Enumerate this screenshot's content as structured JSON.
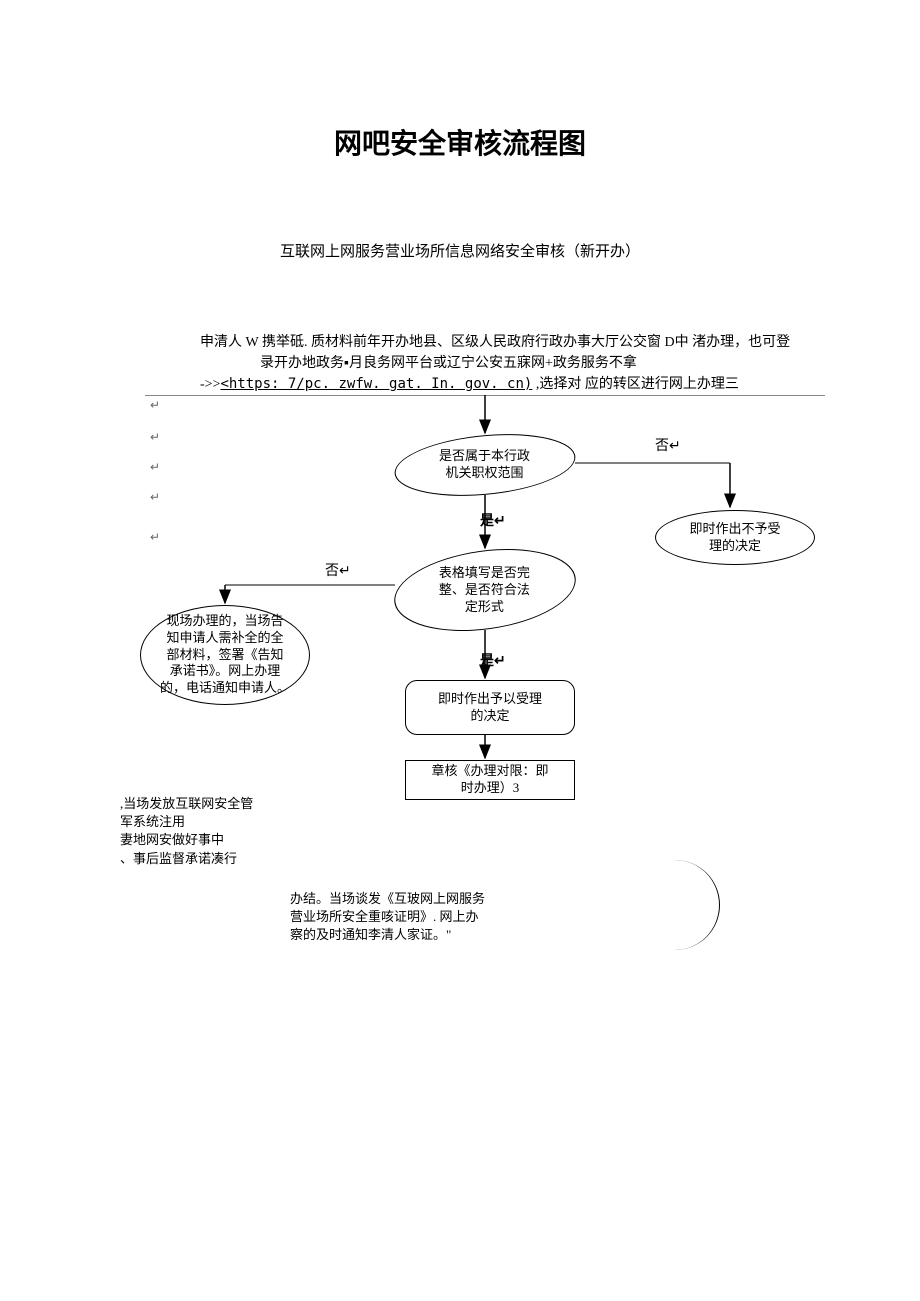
{
  "title": "网吧安全审核流程图",
  "subtitle": "互联网上网服务营业场所信息网络安全审核（新开办）",
  "intro": {
    "line1": "申清人 W 携举砥. 质材料前年开办地县、区级人民政府行政办事大厅公交窗 D中 渚办理，也可登",
    "line2": "录开办地政务▪月良务网平台或辽宁公安五寐网+政务服务不拿",
    "line3_prefix": "->>",
    "line3_url": "<https: 7∕pc. zwfw. gat. In. gov. cn)",
    "line3_suffix": " ,选择对 应的转区进行网上办理三"
  },
  "flowchart": {
    "type": "flowchart",
    "decision1": "是否属于本行政\n机关职权范围",
    "decision2": "表格填写是否完\n整、是否符合法\n定形式",
    "reject_box": "即时作出不予受\n理的决定",
    "advise_box": "现场办理的，当场告\n知申请人需补全的全\n部材料，签署《告知\n承诺书》。网上办理\n的，电话通知申请人。",
    "accept_box": "即时作出予以受理\n的决定",
    "review_box": "章核《办理对限：即\n时办理）3",
    "left_text": ",当场发放互联网安全管\n军系统注用\n妻地网安做好事中\n、事后监督承诺凑行",
    "bottom_text": "办结。当场谈发《互玻网上网服务\n营业场所安全重咳证明》. 网上办\n察的及时通知李清人家证。\"",
    "label_yes": "是",
    "label_no": "否",
    "colors": {
      "line": "#000000",
      "text": "#000000",
      "bg": "#ffffff",
      "return_mark": "#666666"
    },
    "fontsize_node": 13,
    "fontsize_label": 14,
    "return_mark_glyph": "↵"
  }
}
